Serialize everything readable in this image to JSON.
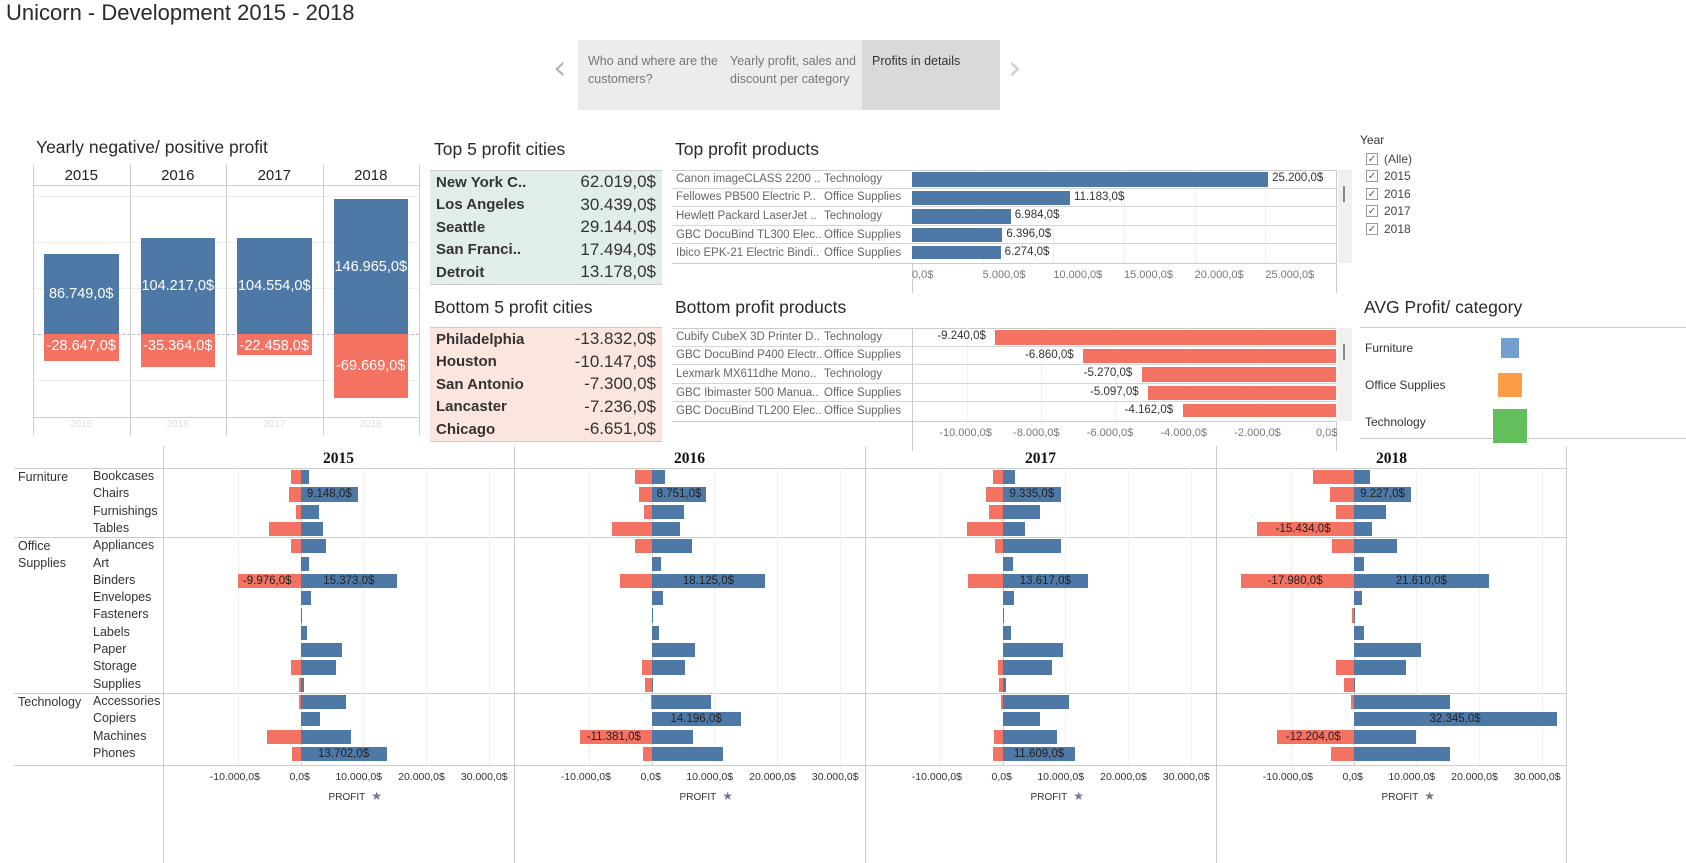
{
  "page_title": "Unicorn - Development 2015 - 2018",
  "story_nav": {
    "prev_icon": "chevron-left-icon",
    "next_icon": "chevron-right-icon",
    "tabs": [
      {
        "label": "Who and where are the customers?",
        "active": false
      },
      {
        "label": "Yearly profit, sales and discount per category",
        "active": false
      },
      {
        "label": "Profits in details",
        "active": true
      }
    ]
  },
  "colors": {
    "positive": "#4e79a7",
    "negative": "#f47262",
    "top_cities_bg": "#e1ede9",
    "bottom_cities_bg": "#fae6de",
    "furniture": "#729fcf",
    "office_supplies": "#fd9d47",
    "technology": "#62bf5c"
  },
  "year_filter": {
    "title": "Year",
    "items": [
      {
        "label": "(Alle)",
        "checked": true
      },
      {
        "label": "2015",
        "checked": true
      },
      {
        "label": "2016",
        "checked": true
      },
      {
        "label": "2017",
        "checked": true
      },
      {
        "label": "2018",
        "checked": true
      }
    ]
  },
  "top_cities": {
    "title": "Top 5 profit cities",
    "rows": [
      {
        "city": "New York C..",
        "value": "62.019,0$"
      },
      {
        "city": "Los Angeles",
        "value": "30.439,0$"
      },
      {
        "city": "Seattle",
        "value": "29.144,0$"
      },
      {
        "city": "San Franci..",
        "value": "17.494,0$"
      },
      {
        "city": "Detroit",
        "value": "13.178,0$"
      }
    ]
  },
  "bottom_cities": {
    "title": "Bottom 5 profit cities",
    "rows": [
      {
        "city": "Philadelphia",
        "value": "-13.832,0$"
      },
      {
        "city": "Houston",
        "value": "-10.147,0$"
      },
      {
        "city": "San Antonio",
        "value": "-7.300,0$"
      },
      {
        "city": "Lancaster",
        "value": "-7.236,0$"
      },
      {
        "city": "Chicago",
        "value": "-6.651,0$"
      }
    ]
  },
  "avg_profit_category": {
    "title": "AVG Profit/ category",
    "items": [
      {
        "label": "Furniture",
        "relative_size": 0.35
      },
      {
        "label": "Office Supplies",
        "relative_size": 0.55
      },
      {
        "label": "Technology",
        "relative_size": 1.0
      }
    ]
  },
  "chart_data": [
    {
      "id": "yearly",
      "type": "bar",
      "title": "Yearly negative/ positive profit",
      "categories": [
        "2015",
        "2016",
        "2017",
        "2018"
      ],
      "series": [
        {
          "name": "Positive profit",
          "values": [
            86749,
            104217,
            104554,
            146965
          ],
          "labels": [
            "86.749,0$",
            "104.217,0$",
            "104.554,0$",
            "146.965,0$"
          ]
        },
        {
          "name": "Negative profit",
          "values": [
            -28647,
            -35364,
            -22458,
            -69669
          ],
          "labels": [
            "-28.647,0$",
            "-35.364,0$",
            "-22.458,0$",
            "-69.669,0$"
          ]
        }
      ],
      "ylim": [
        -90000,
        160000
      ],
      "grid": true
    },
    {
      "id": "top_products",
      "type": "bar",
      "title": "Top profit products",
      "orientation": "horizontal",
      "rows": [
        {
          "product": "Canon imageCLASS 2200 ..",
          "category": "Technology",
          "value": 25200,
          "label": "25.200,0$"
        },
        {
          "product": "Fellowes PB500 Electric P..",
          "category": "Office Supplies",
          "value": 11183,
          "label": "11.183,0$"
        },
        {
          "product": "Hewlett Packard LaserJet ..",
          "category": "Technology",
          "value": 6984,
          "label": "6.984,0$"
        },
        {
          "product": "GBC DocuBind TL300 Elec..",
          "category": "Office Supplies",
          "value": 6396,
          "label": "6.396,0$"
        },
        {
          "product": "Ibico EPK-21 Electric Bindi..",
          "category": "Office Supplies",
          "value": 6274,
          "label": "6.274,0$"
        }
      ],
      "xticks": [
        "0,0$",
        "5.000,0$",
        "10.000,0$",
        "15.000,0$",
        "20.000,0$",
        "25.000,0$"
      ],
      "xlim": [
        0,
        30000
      ]
    },
    {
      "id": "bottom_products",
      "type": "bar",
      "title": "Bottom profit products",
      "orientation": "horizontal",
      "rows": [
        {
          "product": "Cubify CubeX 3D Printer D..",
          "category": "Technology",
          "value": -9240,
          "label": "-9.240,0$"
        },
        {
          "product": "GBC DocuBind P400 Electr..",
          "category": "Office Supplies",
          "value": -6860,
          "label": "-6.860,0$"
        },
        {
          "product": "Lexmark MX611dhe Mono..",
          "category": "Technology",
          "value": -5270,
          "label": "-5.270,0$"
        },
        {
          "product": "GBC Ibimaster 500 Manua..",
          "category": "Office Supplies",
          "value": -5097,
          "label": "-5.097,0$"
        },
        {
          "product": "GBC DocuBind TL200 Elec..",
          "category": "Office Supplies",
          "value": -4162,
          "label": "-4.162,0$"
        }
      ],
      "xticks": [
        "-10.000,0$",
        "-8.000,0$",
        "-6.000,0$",
        "-4.000,0$",
        "-2.000,0$",
        "0,0$"
      ],
      "xlim": [
        -11500,
        0
      ]
    },
    {
      "id": "subcategory",
      "type": "bar",
      "orientation": "horizontal",
      "xlabel": "PROFIT",
      "xlim": [
        -20000,
        34000
      ],
      "xticks": [
        "-10.000,0$",
        "0,0$",
        "10.000,0$",
        "20.000,0$",
        "30.000,0$"
      ],
      "categories": [
        {
          "name": "Furniture",
          "subs": [
            "Bookcases",
            "Chairs",
            "Furnishings",
            "Tables"
          ]
        },
        {
          "name": "Office Supplies",
          "subs": [
            "Appliances",
            "Art",
            "Binders",
            "Envelopes",
            "Fasteners",
            "Labels",
            "Paper",
            "Storage",
            "Supplies"
          ]
        },
        {
          "name": "Technology",
          "subs": [
            "Accessories",
            "Copiers",
            "Machines",
            "Phones"
          ]
        }
      ],
      "panels": [
        {
          "year": "2015",
          "pos": [
            1300,
            9148,
            2900,
            3500,
            4000,
            1300,
            15373,
            1600,
            100,
            1100,
            6600,
            5700,
            600,
            7300,
            3100,
            8100,
            13702
          ],
          "neg": [
            -1600,
            -1800,
            -700,
            -5000,
            -1600,
            0,
            -9976,
            0,
            0,
            0,
            0,
            -1500,
            -200,
            -200,
            0,
            -5400,
            -1300
          ],
          "pos_labels": {
            "1": "9.148,0$",
            "6": "15.373,0$",
            "16": "13.702,0$"
          },
          "neg_labels": {
            "6": "-9.976,0$"
          }
        },
        {
          "year": "2016",
          "pos": [
            2200,
            8751,
            5100,
            4600,
            6500,
            1500,
            18125,
            1900,
            300,
            1200,
            6900,
            5400,
            100,
            9500,
            14196,
            6600,
            11400
          ],
          "neg": [
            -2600,
            -2000,
            -1200,
            -6300,
            -2600,
            0,
            -5100,
            0,
            0,
            0,
            0,
            -1600,
            -1000,
            -100,
            0,
            -11381,
            -1300
          ],
          "pos_labels": {
            "1": "8.751,0$",
            "6": "18.125,0$",
            "14": "14.196,0$"
          },
          "neg_labels": {
            "15": "-11.381,0$"
          }
        },
        {
          "year": "2017",
          "pos": [
            2000,
            9335,
            6000,
            3500,
            9300,
            1600,
            13617,
            1800,
            100,
            1300,
            9700,
            7900,
            500,
            10600,
            5900,
            8700,
            11609
          ],
          "neg": [
            -1600,
            -2700,
            -2100,
            -5700,
            -1200,
            0,
            -5500,
            0,
            0,
            0,
            0,
            -700,
            -600,
            -300,
            0,
            -1300,
            -1500
          ],
          "pos_labels": {
            "1": "9.335,0$",
            "6": "13.617,0$",
            "16": "11.609,0$"
          },
          "neg_labels": {}
        },
        {
          "year": "2018",
          "pos": [
            2700,
            9227,
            5100,
            2900,
            7000,
            1700,
            21610,
            1400,
            100,
            1600,
            10700,
            8400,
            300,
            15300,
            32345,
            10000,
            15300
          ],
          "neg": [
            -6500,
            -3700,
            -2800,
            -15434,
            -3400,
            0,
            -17980,
            0,
            -200,
            0,
            0,
            -2800,
            -1500,
            -400,
            0,
            -12204,
            -3600
          ],
          "pos_labels": {
            "1": "9.227,0$",
            "6": "21.610,0$",
            "14": "32.345,0$"
          },
          "neg_labels": {
            "3": "-15.434,0$",
            "6": "-17.980,0$",
            "15": "-12.204,0$"
          }
        }
      ]
    }
  ]
}
